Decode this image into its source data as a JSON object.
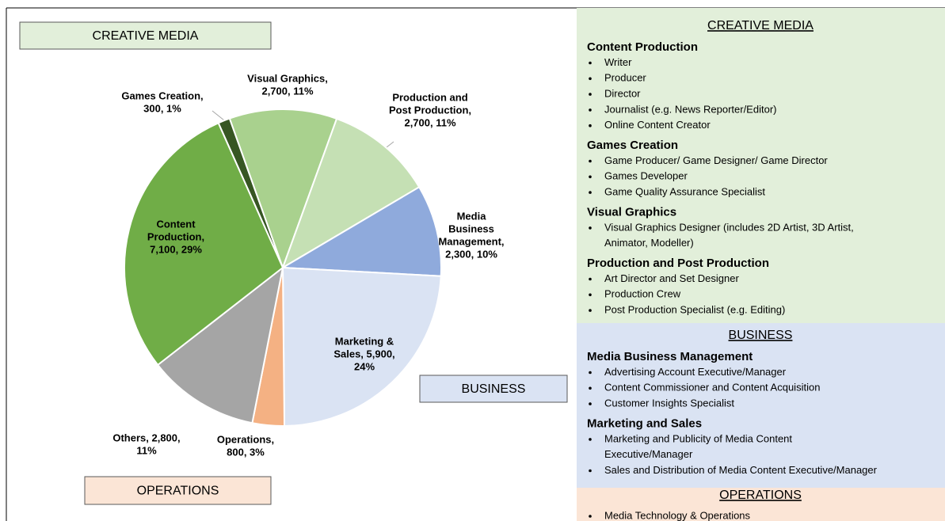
{
  "chart_data": {
    "type": "pie",
    "values": [
      300,
      2700,
      2700,
      2300,
      5900,
      800,
      2800,
      7100
    ],
    "value_labels": [
      [
        "Games Creation,",
        "300, 1%"
      ],
      [
        "Visual Graphics,",
        "2,700, 11%"
      ],
      [
        "Production and",
        "Post Production,",
        "2,700, 11%"
      ],
      [
        "Media",
        "Business",
        "Management,",
        "2,300, 10%"
      ],
      [
        "Marketing &",
        "Sales, 5,900,",
        "24%"
      ],
      [
        "Operations,",
        "800, 3%"
      ],
      [
        "Others, 2,800,",
        "11%"
      ],
      [
        "Content",
        "Production,",
        "7,100, 29%"
      ]
    ],
    "colors": [
      "#375623",
      "#a9d18e",
      "#c5e0b4",
      "#8faadc",
      "#dae3f3",
      "#f4b183",
      "#a5a5a5",
      "#70ad47"
    ],
    "annotations": [
      "CREATIVE MEDIA",
      "BUSINESS",
      "OPERATIONS"
    ]
  },
  "panel": {
    "sections": [
      {
        "title": "CREATIVE MEDIA",
        "groups": [
          {
            "heading": "Content Production",
            "items": [
              [
                "Writer"
              ],
              [
                "Producer"
              ],
              [
                "Director"
              ],
              [
                "Journalist (e.g. News Reporter/Editor)"
              ],
              [
                "Online Content Creator"
              ]
            ]
          },
          {
            "heading": "Games Creation",
            "items": [
              [
                "Game Producer/ Game Designer/ Game Director"
              ],
              [
                "Games Developer"
              ],
              [
                "Game Quality Assurance Specialist"
              ]
            ]
          },
          {
            "heading": "Visual Graphics",
            "items": [
              [
                "Visual Graphics Designer (includes 2D Artist, 3D Artist,",
                "Animator, Modeller)"
              ]
            ]
          },
          {
            "heading": "Production and Post Production",
            "items": [
              [
                "Art Director and Set Designer"
              ],
              [
                "Production Crew"
              ],
              [
                "Post Production Specialist (e.g. Editing)"
              ]
            ]
          }
        ]
      },
      {
        "title": "BUSINESS",
        "groups": [
          {
            "heading": "Media Business Management",
            "items": [
              [
                "Advertising Account Executive/Manager"
              ],
              [
                "Content Commissioner and Content Acquisition"
              ],
              [
                "Customer Insights Specialist"
              ]
            ]
          },
          {
            "heading": "Marketing and Sales",
            "items": [
              [
                "Marketing and Publicity of Media Content",
                "Executive/Manager"
              ],
              [
                "Sales and Distribution of Media Content Executive/Manager"
              ]
            ]
          }
        ]
      },
      {
        "title": "OPERATIONS",
        "groups": [
          {
            "heading": null,
            "items": [
              [
                "Media Technology & Operations"
              ]
            ]
          }
        ]
      }
    ]
  }
}
